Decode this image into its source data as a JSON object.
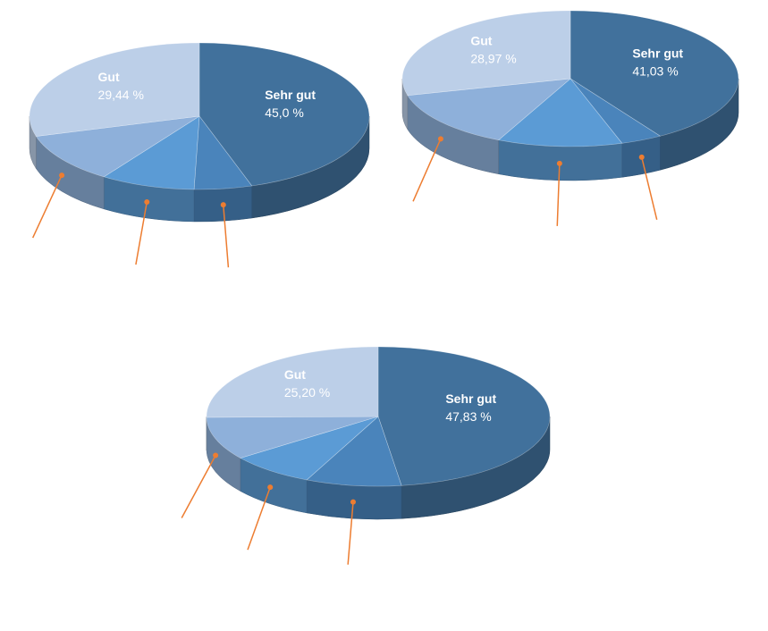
{
  "chart_data": [
    {
      "type": "pie",
      "categories": [
        "Sehr gut",
        null,
        null,
        null,
        "Gut"
      ],
      "values": [
        45.0,
        5.5,
        9.0,
        11.06,
        29.44
      ],
      "value_labels": [
        "45,0 %",
        null,
        null,
        null,
        "29,44 %"
      ],
      "colors": [
        "#41719c",
        "#4a84bb",
        "#5b9bd5",
        "#8eb0da",
        "#bccfe8"
      ]
    },
    {
      "type": "pie",
      "categories": [
        "Sehr gut",
        null,
        null,
        null,
        "Gut"
      ],
      "values": [
        41.03,
        4.0,
        12.0,
        14.0,
        28.97
      ],
      "value_labels": [
        "41,03 %",
        null,
        null,
        null,
        "28,97 %"
      ],
      "colors": [
        "#41719c",
        "#4a84bb",
        "#5b9bd5",
        "#8eb0da",
        "#bccfe8"
      ]
    },
    {
      "type": "pie",
      "categories": [
        "Sehr gut",
        null,
        null,
        null,
        "Gut"
      ],
      "values": [
        47.83,
        9.0,
        8.0,
        9.97,
        25.2
      ],
      "value_labels": [
        "47,83 %",
        null,
        null,
        null,
        "25,20 %"
      ],
      "colors": [
        "#41719c",
        "#4a84bb",
        "#5b9bd5",
        "#8eb0da",
        "#bccfe8"
      ]
    }
  ]
}
